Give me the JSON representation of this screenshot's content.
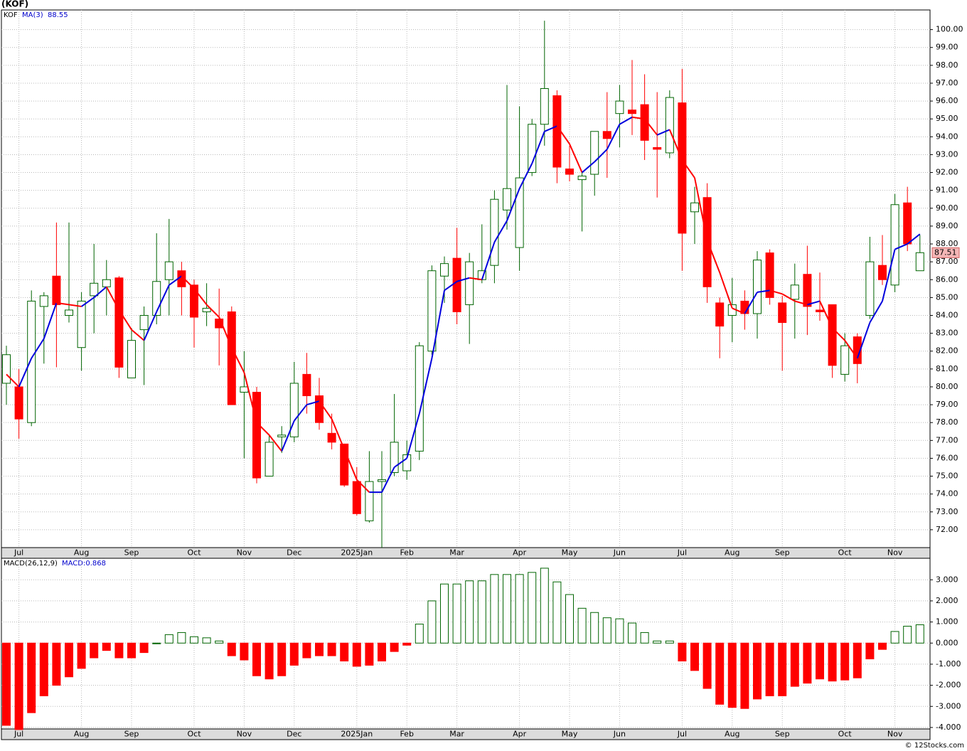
{
  "chart_data": [
    {
      "type": "candlestick",
      "title": "(KOF)",
      "name": "KOF",
      "source": "© 12Stocks.com",
      "categories": [
        null,
        "Jul",
        null,
        null,
        null,
        null,
        "Aug",
        null,
        null,
        null,
        "Sep",
        null,
        null,
        null,
        null,
        "Oct",
        null,
        null,
        null,
        "Nov",
        null,
        null,
        null,
        "Dec",
        null,
        null,
        null,
        null,
        "2025Jan",
        null,
        null,
        null,
        "Feb",
        null,
        null,
        null,
        "Mar",
        null,
        null,
        null,
        null,
        "Apr",
        null,
        null,
        null,
        "May",
        null,
        null,
        null,
        "Jun",
        null,
        null,
        null,
        null,
        "Jul",
        null,
        null,
        null,
        "Aug",
        null,
        null,
        null,
        "Sep",
        null,
        null,
        null,
        null,
        "Oct",
        null,
        null,
        null,
        "Nov",
        null,
        null
      ],
      "open": [
        80.2,
        80.0,
        78.0,
        84.5,
        86.2,
        84.0,
        82.2,
        85.1,
        85.6,
        86.1,
        80.5,
        83.2,
        84.0,
        86.0,
        86.5,
        85.7,
        84.2,
        83.8,
        84.2,
        79.7,
        79.7,
        75.0,
        77.2,
        77.2,
        80.7,
        79.5,
        77.4,
        76.8,
        74.7,
        72.5,
        74.7,
        75.2,
        75.3,
        76.4,
        82.0,
        86.2,
        87.2,
        84.6,
        86.0,
        86.8,
        89.9,
        87.8,
        92.0,
        94.7,
        96.3,
        92.2,
        91.6,
        91.9,
        94.3,
        95.3,
        95.5,
        95.8,
        93.4,
        93.1,
        95.9,
        89.8,
        90.6,
        84.7,
        84.0,
        84.8,
        84.1,
        87.5,
        84.7,
        84.9,
        86.3,
        84.3,
        84.6,
        80.7,
        82.8,
        84.0,
        86.8,
        85.7,
        90.3,
        86.5
      ],
      "high": [
        82.3,
        81.0,
        85.4,
        85.3,
        89.2,
        89.2,
        85.3,
        88.0,
        87.1,
        86.2,
        83.3,
        84.5,
        88.6,
        89.4,
        87.0,
        86.0,
        85.8,
        85.5,
        84.5,
        82.0,
        80.0,
        77.3,
        77.8,
        81.4,
        81.9,
        80.5,
        78.5,
        76.8,
        75.5,
        76.4,
        76.4,
        79.6,
        77.0,
        82.5,
        86.8,
        87.3,
        88.9,
        87.5,
        89.1,
        91.0,
        96.9,
        95.7,
        95.0,
        100.5,
        96.6,
        93.5,
        92.0,
        94.3,
        96.5,
        96.9,
        98.3,
        97.5,
        96.5,
        96.6,
        97.8,
        91.2,
        91.4,
        85.0,
        86.1,
        85.4,
        87.6,
        87.7,
        85.1,
        86.9,
        87.9,
        86.4,
        84.6,
        83.0,
        83.0,
        88.4,
        88.5,
        90.8,
        91.2,
        88.5
      ],
      "low": [
        79.0,
        77.1,
        77.8,
        81.3,
        81.1,
        83.6,
        80.9,
        83.0,
        84.0,
        80.5,
        80.5,
        80.1,
        83.5,
        84.0,
        84.0,
        82.2,
        83.4,
        81.2,
        79.0,
        76.0,
        74.6,
        75.0,
        76.3,
        76.9,
        78.5,
        77.6,
        76.5,
        74.4,
        72.8,
        72.4,
        71.0,
        75.0,
        74.8,
        75.9,
        81.8,
        84.7,
        83.5,
        82.4,
        85.8,
        85.8,
        88.8,
        86.5,
        91.8,
        93.5,
        91.4,
        91.5,
        88.7,
        90.7,
        91.7,
        93.4,
        94.1,
        92.7,
        90.6,
        92.8,
        86.5,
        88.0,
        84.7,
        81.6,
        82.5,
        83.2,
        82.7,
        84.6,
        80.9,
        82.7,
        82.9,
        83.7,
        80.5,
        80.3,
        80.2,
        83.8,
        85.7,
        85.3,
        87.6,
        86.5
      ],
      "close": [
        81.8,
        78.2,
        84.8,
        85.1,
        84.6,
        84.3,
        84.8,
        85.8,
        86.0,
        81.1,
        82.6,
        84.0,
        85.9,
        87.0,
        85.6,
        83.9,
        84.4,
        83.3,
        79.0,
        80.0,
        74.9,
        76.9,
        77.3,
        80.2,
        79.5,
        78.0,
        76.9,
        74.5,
        72.9,
        74.7,
        74.8,
        76.9,
        76.2,
        82.3,
        86.5,
        86.9,
        84.2,
        87.0,
        86.5,
        90.5,
        91.1,
        91.7,
        94.7,
        96.7,
        92.3,
        91.9,
        91.8,
        94.3,
        93.9,
        96.0,
        95.3,
        93.8,
        93.3,
        96.2,
        88.6,
        90.3,
        85.6,
        83.4,
        84.6,
        84.1,
        87.1,
        85.0,
        83.6,
        85.7,
        84.5,
        84.2,
        81.2,
        82.3,
        81.3,
        87.0,
        86.0,
        90.2,
        88.0,
        87.51
      ],
      "up_color": "#006400",
      "down_color": "#ff0000",
      "series": [
        {
          "name": "MA(3)",
          "up_color": "#0000dd",
          "down_color": "#ff0000",
          "values": [
            80.7,
            80.0,
            81.6,
            82.7,
            84.7,
            84.6,
            84.5,
            85.0,
            85.6,
            84.3,
            83.2,
            82.6,
            84.2,
            85.7,
            86.2,
            85.5,
            84.6,
            83.9,
            82.2,
            80.8,
            78.0,
            77.3,
            76.4,
            78.1,
            79.0,
            79.2,
            78.2,
            76.5,
            74.8,
            74.1,
            74.1,
            75.5,
            76.0,
            78.5,
            81.6,
            85.4,
            85.9,
            86.1,
            86.0,
            88.1,
            89.3,
            91.1,
            92.5,
            94.3,
            94.6,
            93.6,
            92.0,
            92.6,
            93.3,
            94.7,
            95.1,
            95.0,
            94.1,
            94.4,
            92.7,
            91.7,
            88.2,
            86.4,
            84.4,
            84.1,
            85.3,
            85.4,
            85.2,
            84.8,
            84.6,
            84.8,
            83.3,
            82.6,
            81.6,
            83.6,
            84.8,
            87.7,
            88.0,
            88.55
          ]
        }
      ],
      "ylim": [
        71.0,
        101.1
      ],
      "yticks": [
        {
          "value": 72,
          "label": "72.00"
        },
        {
          "value": 73,
          "label": "73.00"
        },
        {
          "value": 74,
          "label": "74.00"
        },
        {
          "value": 75,
          "label": "75.00"
        },
        {
          "value": 76,
          "label": "76.00"
        },
        {
          "value": 77,
          "label": "77.00"
        },
        {
          "value": 78,
          "label": "78.00"
        },
        {
          "value": 79,
          "label": "79.00"
        },
        {
          "value": 80,
          "label": "80.00"
        },
        {
          "value": 81,
          "label": "81.00"
        },
        {
          "value": 82,
          "label": "82.00"
        },
        {
          "value": 83,
          "label": "83.00"
        },
        {
          "value": 84,
          "label": "84.00"
        },
        {
          "value": 85,
          "label": "85.00"
        },
        {
          "value": 86,
          "label": "86.00"
        },
        {
          "value": 87,
          "label": "87.00"
        },
        {
          "value": 88,
          "label": "88.00"
        },
        {
          "value": 89,
          "label": "89.00"
        },
        {
          "value": 90,
          "label": "90.00"
        },
        {
          "value": 91,
          "label": "91.00"
        },
        {
          "value": 92,
          "label": "92.00"
        },
        {
          "value": 93,
          "label": "93.00"
        },
        {
          "value": 94,
          "label": "94.00"
        },
        {
          "value": 95,
          "label": "95.00"
        },
        {
          "value": 96,
          "label": "96.00"
        },
        {
          "value": 97,
          "label": "97.00"
        },
        {
          "value": 98,
          "label": "98.00"
        },
        {
          "value": 99,
          "label": "99.00"
        },
        {
          "value": 100,
          "label": "100.00"
        }
      ],
      "grid": true
    },
    {
      "type": "bar",
      "title": "MACD(26,12,9)",
      "legend": "MACD:0.868",
      "pos_color": "#006400",
      "neg_color": "#ff0000",
      "values": [
        -3.9,
        -4.1,
        -3.3,
        -2.5,
        -2.0,
        -1.6,
        -1.2,
        -0.7,
        -0.35,
        -0.7,
        -0.7,
        -0.45,
        0.0,
        0.4,
        0.5,
        0.3,
        0.25,
        0.1,
        -0.6,
        -0.8,
        -1.55,
        -1.7,
        -1.55,
        -1.05,
        -0.7,
        -0.6,
        -0.6,
        -0.85,
        -1.1,
        -1.05,
        -0.85,
        -0.4,
        -0.1,
        0.9,
        2.0,
        2.8,
        2.8,
        2.95,
        2.95,
        3.25,
        3.25,
        3.25,
        3.35,
        3.55,
        2.9,
        2.3,
        1.65,
        1.45,
        1.2,
        1.15,
        0.95,
        0.5,
        0.1,
        0.1,
        -0.85,
        -1.3,
        -2.15,
        -2.9,
        -3.05,
        -3.1,
        -2.65,
        -2.5,
        -2.5,
        -2.05,
        -1.9,
        -1.7,
        -1.8,
        -1.75,
        -1.65,
        -0.75,
        -0.3,
        0.55,
        0.8,
        0.868
      ],
      "ylim": [
        -4.07,
        4.02
      ],
      "yticks": [
        {
          "value": -4,
          "label": "-4.000"
        },
        {
          "value": -3,
          "label": "-3.000"
        },
        {
          "value": -2,
          "label": "-2.000"
        },
        {
          "value": -1,
          "label": "-1.000"
        },
        {
          "value": 0,
          "label": "0.000"
        },
        {
          "value": 1,
          "label": "1.000"
        },
        {
          "value": 2,
          "label": "2.000"
        },
        {
          "value": 3,
          "label": "3.000"
        }
      ],
      "grid": true
    }
  ]
}
